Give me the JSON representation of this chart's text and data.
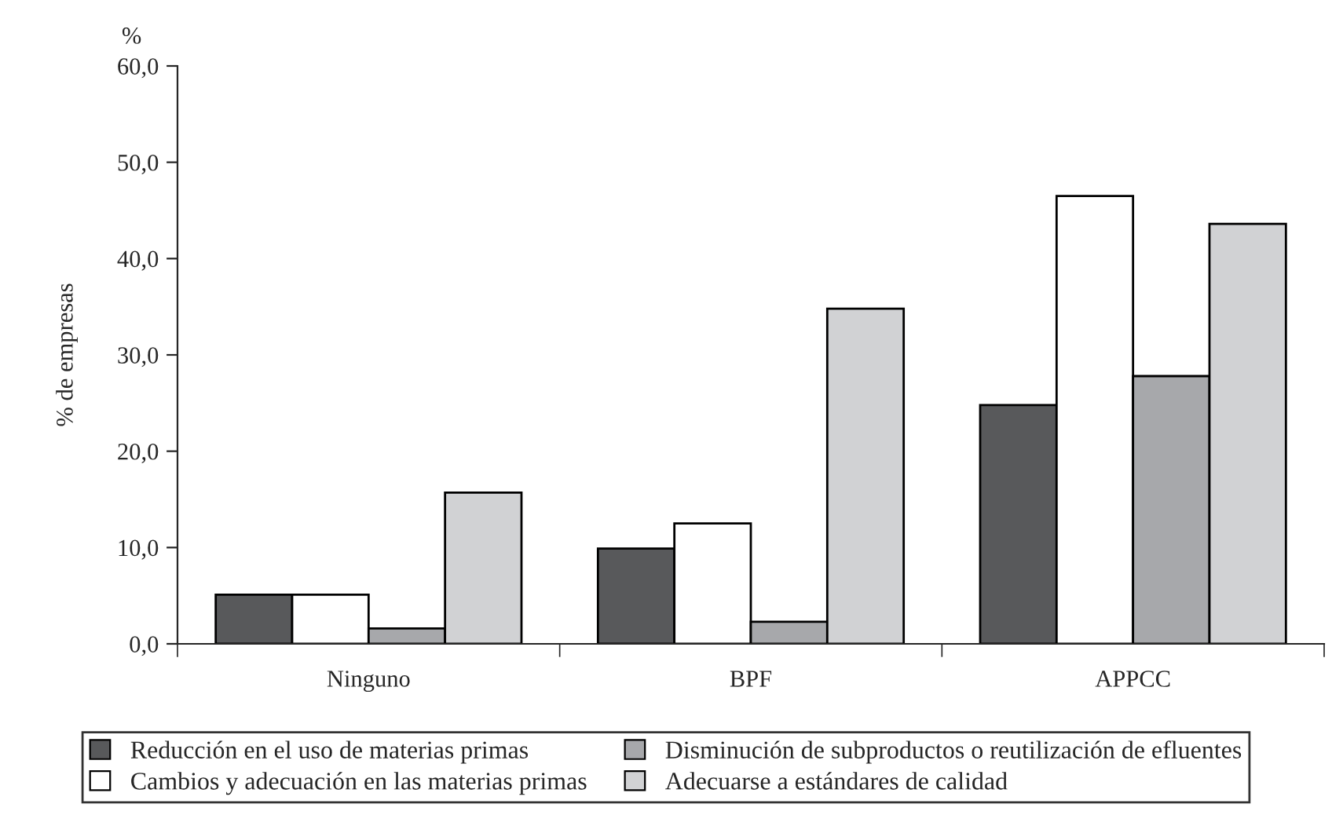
{
  "chart_data": {
    "type": "bar",
    "ylabel": "% de empresas",
    "annotations": [
      "%"
    ],
    "categories": [
      "Ninguno",
      "BPF",
      "APPCC"
    ],
    "series": [
      {
        "name": "Reducción en el uso de materias primas",
        "color": "#58595b",
        "values": [
          5.1,
          9.9,
          24.8
        ]
      },
      {
        "name": "Cambios y adecuación en las materias primas",
        "color": "#ffffff",
        "values": [
          5.1,
          12.5,
          46.5
        ]
      },
      {
        "name": "Disminución de subproductos o reutilización de efluentes",
        "color": "#a7a8ab",
        "values": [
          1.6,
          2.3,
          27.8
        ]
      },
      {
        "name": "Adecuarse a estándares de calidad",
        "color": "#d1d2d4",
        "values": [
          15.7,
          34.8,
          43.6
        ]
      }
    ],
    "ylim": [
      0,
      60
    ],
    "yticks": [
      {
        "value": 0,
        "label": "0,0"
      },
      {
        "value": 10,
        "label": "10,0"
      },
      {
        "value": 20,
        "label": "20,0"
      },
      {
        "value": 30,
        "label": "30,0"
      },
      {
        "value": 40,
        "label": "40,0"
      },
      {
        "value": 50,
        "label": "50,0"
      },
      {
        "value": 60,
        "label": "60,0"
      }
    ],
    "grid": false,
    "legend": "bottom"
  }
}
